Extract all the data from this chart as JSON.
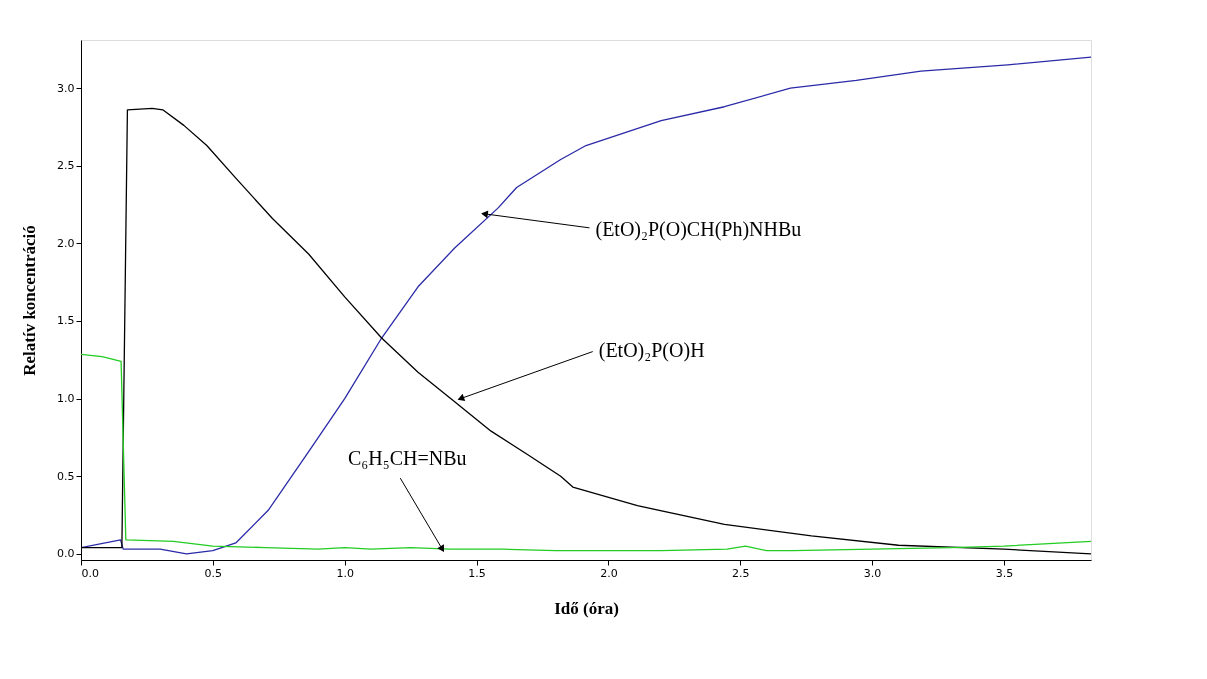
{
  "chart_data": {
    "type": "line",
    "xlabel": "Idő (óra)",
    "ylabel": "Relatív koncentráció",
    "xlim": [
      0,
      3.83
    ],
    "ylim": [
      -0.04,
      3.31
    ],
    "xticks": [
      {
        "value": 0,
        "label": "0.0"
      },
      {
        "value": 0.5,
        "label": "0.5"
      },
      {
        "value": 1,
        "label": "1.0"
      },
      {
        "value": 1.5,
        "label": "1.5"
      },
      {
        "value": 2,
        "label": "2.0"
      },
      {
        "value": 2.5,
        "label": "2.5"
      },
      {
        "value": 3,
        "label": "3.0"
      },
      {
        "value": 3.5,
        "label": "3.5"
      }
    ],
    "yticks": [
      {
        "value": 0,
        "label": "0.0"
      },
      {
        "value": 0.5,
        "label": "0.5"
      },
      {
        "value": 1,
        "label": "1.0"
      },
      {
        "value": 1.5,
        "label": "1.5"
      },
      {
        "value": 2,
        "label": "2.0"
      },
      {
        "value": 2.5,
        "label": "2.5"
      },
      {
        "value": 3,
        "label": "3.0"
      }
    ],
    "grid": false,
    "marker": "none",
    "line_style": "solid",
    "series": [
      {
        "color": "#2a2aa8",
        "x": [
          0,
          0.15,
          0.16,
          0.3,
          0.4,
          0.5,
          0.587,
          0.71,
          0.864,
          1.0,
          1.14,
          1.278,
          1.417,
          1.583,
          1.652,
          1.819,
          1.915,
          2.2,
          2.44,
          2.69,
          2.94,
          3.185,
          3.514,
          3.83
        ],
        "values": [
          0.04,
          0.09,
          0.03,
          0.03,
          0.0,
          0.02,
          0.07,
          0.28,
          0.66,
          1.0,
          1.39,
          1.72,
          1.97,
          2.23,
          2.36,
          2.54,
          2.63,
          2.79,
          2.88,
          3.0,
          3.05,
          3.11,
          3.15,
          3.2
        ]
      },
      {
        "color": "#000000",
        "x": [
          0,
          0.155,
          0.176,
          0.27,
          0.31,
          0.39,
          0.477,
          0.587,
          0.726,
          0.864,
          1.0,
          1.14,
          1.278,
          1.417,
          1.555,
          1.693,
          1.819,
          1.865,
          2.11,
          2.44,
          2.77,
          3.1,
          3.5,
          3.83
        ],
        "values": [
          0.04,
          0.04,
          2.86,
          2.87,
          2.86,
          2.76,
          2.63,
          2.42,
          2.16,
          1.93,
          1.655,
          1.39,
          1.17,
          0.98,
          0.79,
          0.64,
          0.5,
          0.43,
          0.31,
          0.19,
          0.115,
          0.055,
          0.03,
          0.0
        ]
      },
      {
        "color": "#22cc22",
        "x": [
          0,
          0.08,
          0.152,
          0.17,
          0.35,
          0.5,
          0.7,
          0.9,
          1.0,
          1.1,
          1.25,
          1.4,
          1.6,
          1.8,
          2.0,
          2.2,
          2.45,
          2.52,
          2.6,
          2.7,
          3.0,
          3.3,
          3.5,
          3.83
        ],
        "values": [
          1.285,
          1.27,
          1.24,
          0.09,
          0.08,
          0.05,
          0.04,
          0.03,
          0.04,
          0.03,
          0.04,
          0.03,
          0.03,
          0.02,
          0.02,
          0.02,
          0.03,
          0.05,
          0.02,
          0.02,
          0.03,
          0.04,
          0.05,
          0.08
        ]
      }
    ],
    "annotations": [
      {
        "text": "(EtO)₂P(O)CH(Ph)NHBu",
        "x": 1.53,
        "y": 2.19
      },
      {
        "text": "(EtO)₂P(O)H",
        "x": 1.44,
        "y": 1.0
      },
      {
        "text": "C₆H₅CH=NBu",
        "x": 1.37,
        "y": 0.03
      }
    ]
  }
}
